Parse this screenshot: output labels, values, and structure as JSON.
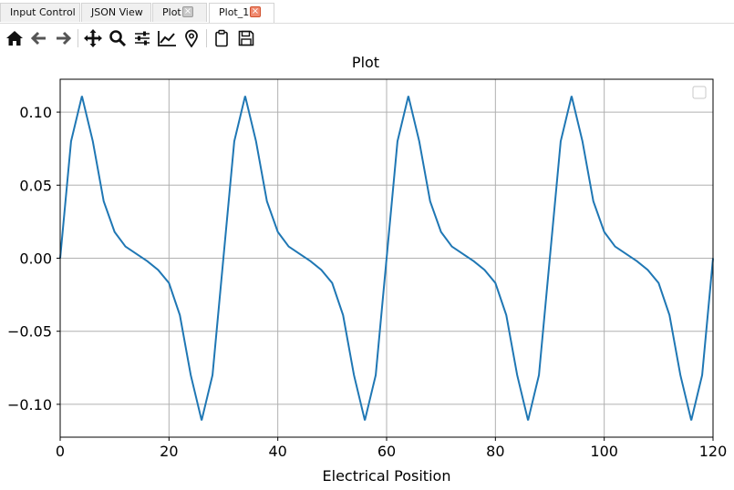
{
  "tabs": [
    {
      "label": "Input Control",
      "active": false,
      "closable": false
    },
    {
      "label": "JSON View",
      "active": false,
      "closable": false
    },
    {
      "label": "Plot",
      "active": false,
      "closable": true
    },
    {
      "label": "Plot_1",
      "active": true,
      "closable": true
    }
  ],
  "toolbar": {
    "icons": [
      "home-icon",
      "back-arrow-icon",
      "forward-arrow-icon",
      "pan-icon",
      "zoom-icon",
      "subplots-sliders-icon",
      "axes-line-icon",
      "location-pin-icon",
      "clipboard-icon",
      "save-icon"
    ]
  },
  "colors": {
    "line": "#1f77b4",
    "grid": "#b0b0b0"
  },
  "chart_data": {
    "type": "line",
    "title": "Plot",
    "xlabel": "Electrical Position",
    "ylabel": "",
    "xlim": [
      0,
      120
    ],
    "ylim": [
      -0.1225,
      0.1225
    ],
    "xticks": [
      "0",
      "20",
      "40",
      "60",
      "80",
      "100",
      "120"
    ],
    "yticks": [
      "0.10",
      "0.05",
      "0.00",
      "−0.05",
      "−0.10"
    ],
    "grid": true,
    "legend": "top-right (empty)",
    "series": [
      {
        "x": [
          0,
          2,
          4,
          6,
          8,
          10,
          12,
          14,
          16,
          18,
          20,
          22,
          24,
          26,
          28,
          30,
          32,
          34,
          36,
          38,
          40,
          42,
          44,
          46,
          48,
          50,
          52,
          54,
          56,
          58,
          60,
          62,
          64,
          66,
          68,
          70,
          72,
          74,
          76,
          78,
          80,
          82,
          84,
          86,
          88,
          90,
          92,
          94,
          96,
          98,
          100,
          102,
          104,
          106,
          108,
          110,
          112,
          114,
          116,
          118,
          120
        ],
        "y": [
          0.0,
          0.08,
          0.111,
          0.08,
          0.039,
          0.018,
          0.008,
          0.003,
          -0.002,
          -0.008,
          -0.017,
          -0.039,
          -0.08,
          -0.111,
          -0.08,
          0.0,
          0.08,
          0.111,
          0.08,
          0.039,
          0.018,
          0.008,
          0.003,
          -0.002,
          -0.008,
          -0.017,
          -0.039,
          -0.08,
          -0.111,
          -0.08,
          0.0,
          0.08,
          0.111,
          0.08,
          0.039,
          0.018,
          0.008,
          0.003,
          -0.002,
          -0.008,
          -0.017,
          -0.039,
          -0.08,
          -0.111,
          -0.08,
          0.0,
          0.08,
          0.111,
          0.08,
          0.039,
          0.018,
          0.008,
          0.003,
          -0.002,
          -0.008,
          -0.017,
          -0.039,
          -0.08,
          -0.111,
          -0.08,
          0.0
        ]
      }
    ]
  }
}
